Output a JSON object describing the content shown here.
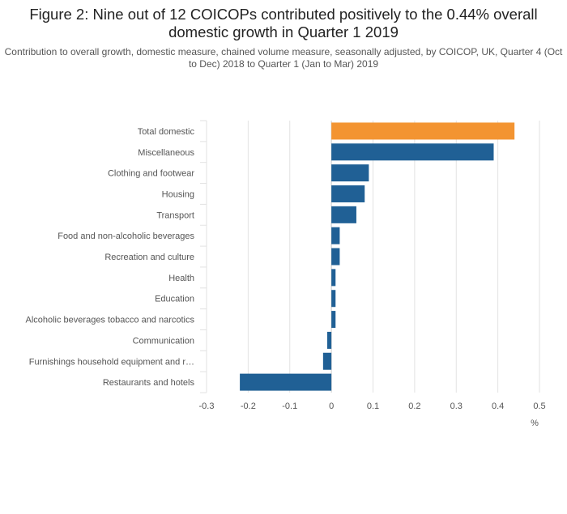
{
  "chart_data": {
    "type": "bar",
    "orientation": "horizontal",
    "title": "Figure 2: Nine out of 12 COICOPs contributed positively to the 0.44% overall domestic growth in Quarter 1 2019",
    "subtitle": "Contribution to overall growth, domestic measure, chained volume measure, seasonally adjusted, by COICOP, UK, Quarter 4 (Oct to Dec) 2018 to Quarter 1 (Jan to Mar) 2019",
    "categories": [
      "Total domestic",
      "Miscellaneous",
      "Clothing and footwear",
      "Housing",
      "Transport",
      "Food and non-alcoholic beverages",
      "Recreation and culture",
      "Health",
      "Education",
      "Alcoholic beverages tobacco and narcotics",
      "Communication",
      "Furnishings household equipment and r…",
      "Restaurants and hotels"
    ],
    "values": [
      0.44,
      0.39,
      0.09,
      0.08,
      0.06,
      0.02,
      0.02,
      0.01,
      0.01,
      0.01,
      -0.01,
      -0.02,
      -0.22
    ],
    "highlight_index": 0,
    "xlim": [
      -0.3,
      0.5
    ],
    "xticks": [
      -0.3,
      -0.2,
      -0.1,
      0,
      0.1,
      0.2,
      0.3,
      0.4,
      0.5
    ],
    "xtick_labels": [
      "-0.3",
      "-0.2",
      "-0.1",
      "0",
      "0.1",
      "0.2",
      "0.3",
      "0.4",
      "0.5"
    ],
    "xlabel": "%",
    "grid": true,
    "colors": {
      "bar": "#206095",
      "highlight": "#f39431",
      "grid": "#e2e2e2",
      "text": "#555555"
    }
  }
}
